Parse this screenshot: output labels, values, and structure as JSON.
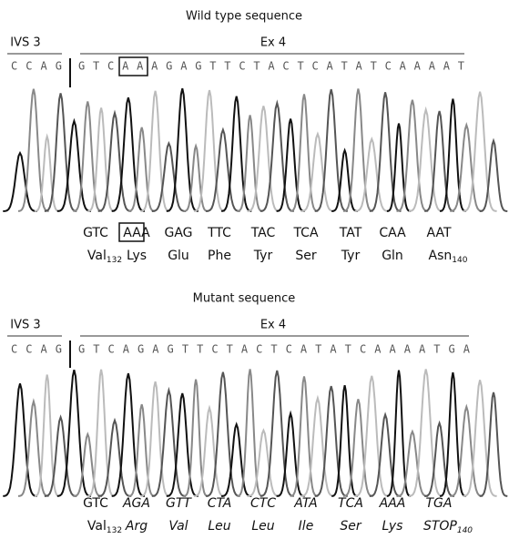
{
  "panels": [
    {
      "title": "Wild type sequence",
      "intron_label": "IVS 3",
      "exon_label": "Ex 4",
      "intron_sequence": "CCAG",
      "exon_sequence": "GTCAAAGAGTTCTACTCATATCAAAAT",
      "codons": [
        "GTC",
        "AAA",
        "GAG",
        "TTC",
        "TAC",
        "TCA",
        "TAT",
        "CAA",
        "AAT"
      ],
      "amino_acids": [
        {
          "name": "Val",
          "position": "132"
        },
        {
          "name": "Lys"
        },
        {
          "name": "Glu"
        },
        {
          "name": "Phe"
        },
        {
          "name": "Tyr"
        },
        {
          "name": "Ser"
        },
        {
          "name": "Tyr"
        },
        {
          "name": "Gln"
        },
        {
          "name": "Asn",
          "position": "140"
        }
      ]
    },
    {
      "title": "Mutant sequence",
      "intron_label": "IVS 3",
      "exon_label": "Ex 4",
      "intron_sequence": "CCAG",
      "exon_sequence": "GTCAGAGTTCTACTCATATCAAAATGA",
      "codons": [
        "GTC",
        "AGA",
        "GTT",
        "CTA",
        "CTC",
        "ATA",
        "TCA",
        "AAA",
        "TGA"
      ],
      "amino_acids": [
        {
          "name": "Val",
          "position": "132"
        },
        {
          "name": "Arg"
        },
        {
          "name": "Val"
        },
        {
          "name": "Leu"
        },
        {
          "name": "Leu"
        },
        {
          "name": "Ile"
        },
        {
          "name": "Ser"
        },
        {
          "name": "Lys"
        },
        {
          "name": "STOP",
          "position": "140"
        }
      ]
    }
  ]
}
